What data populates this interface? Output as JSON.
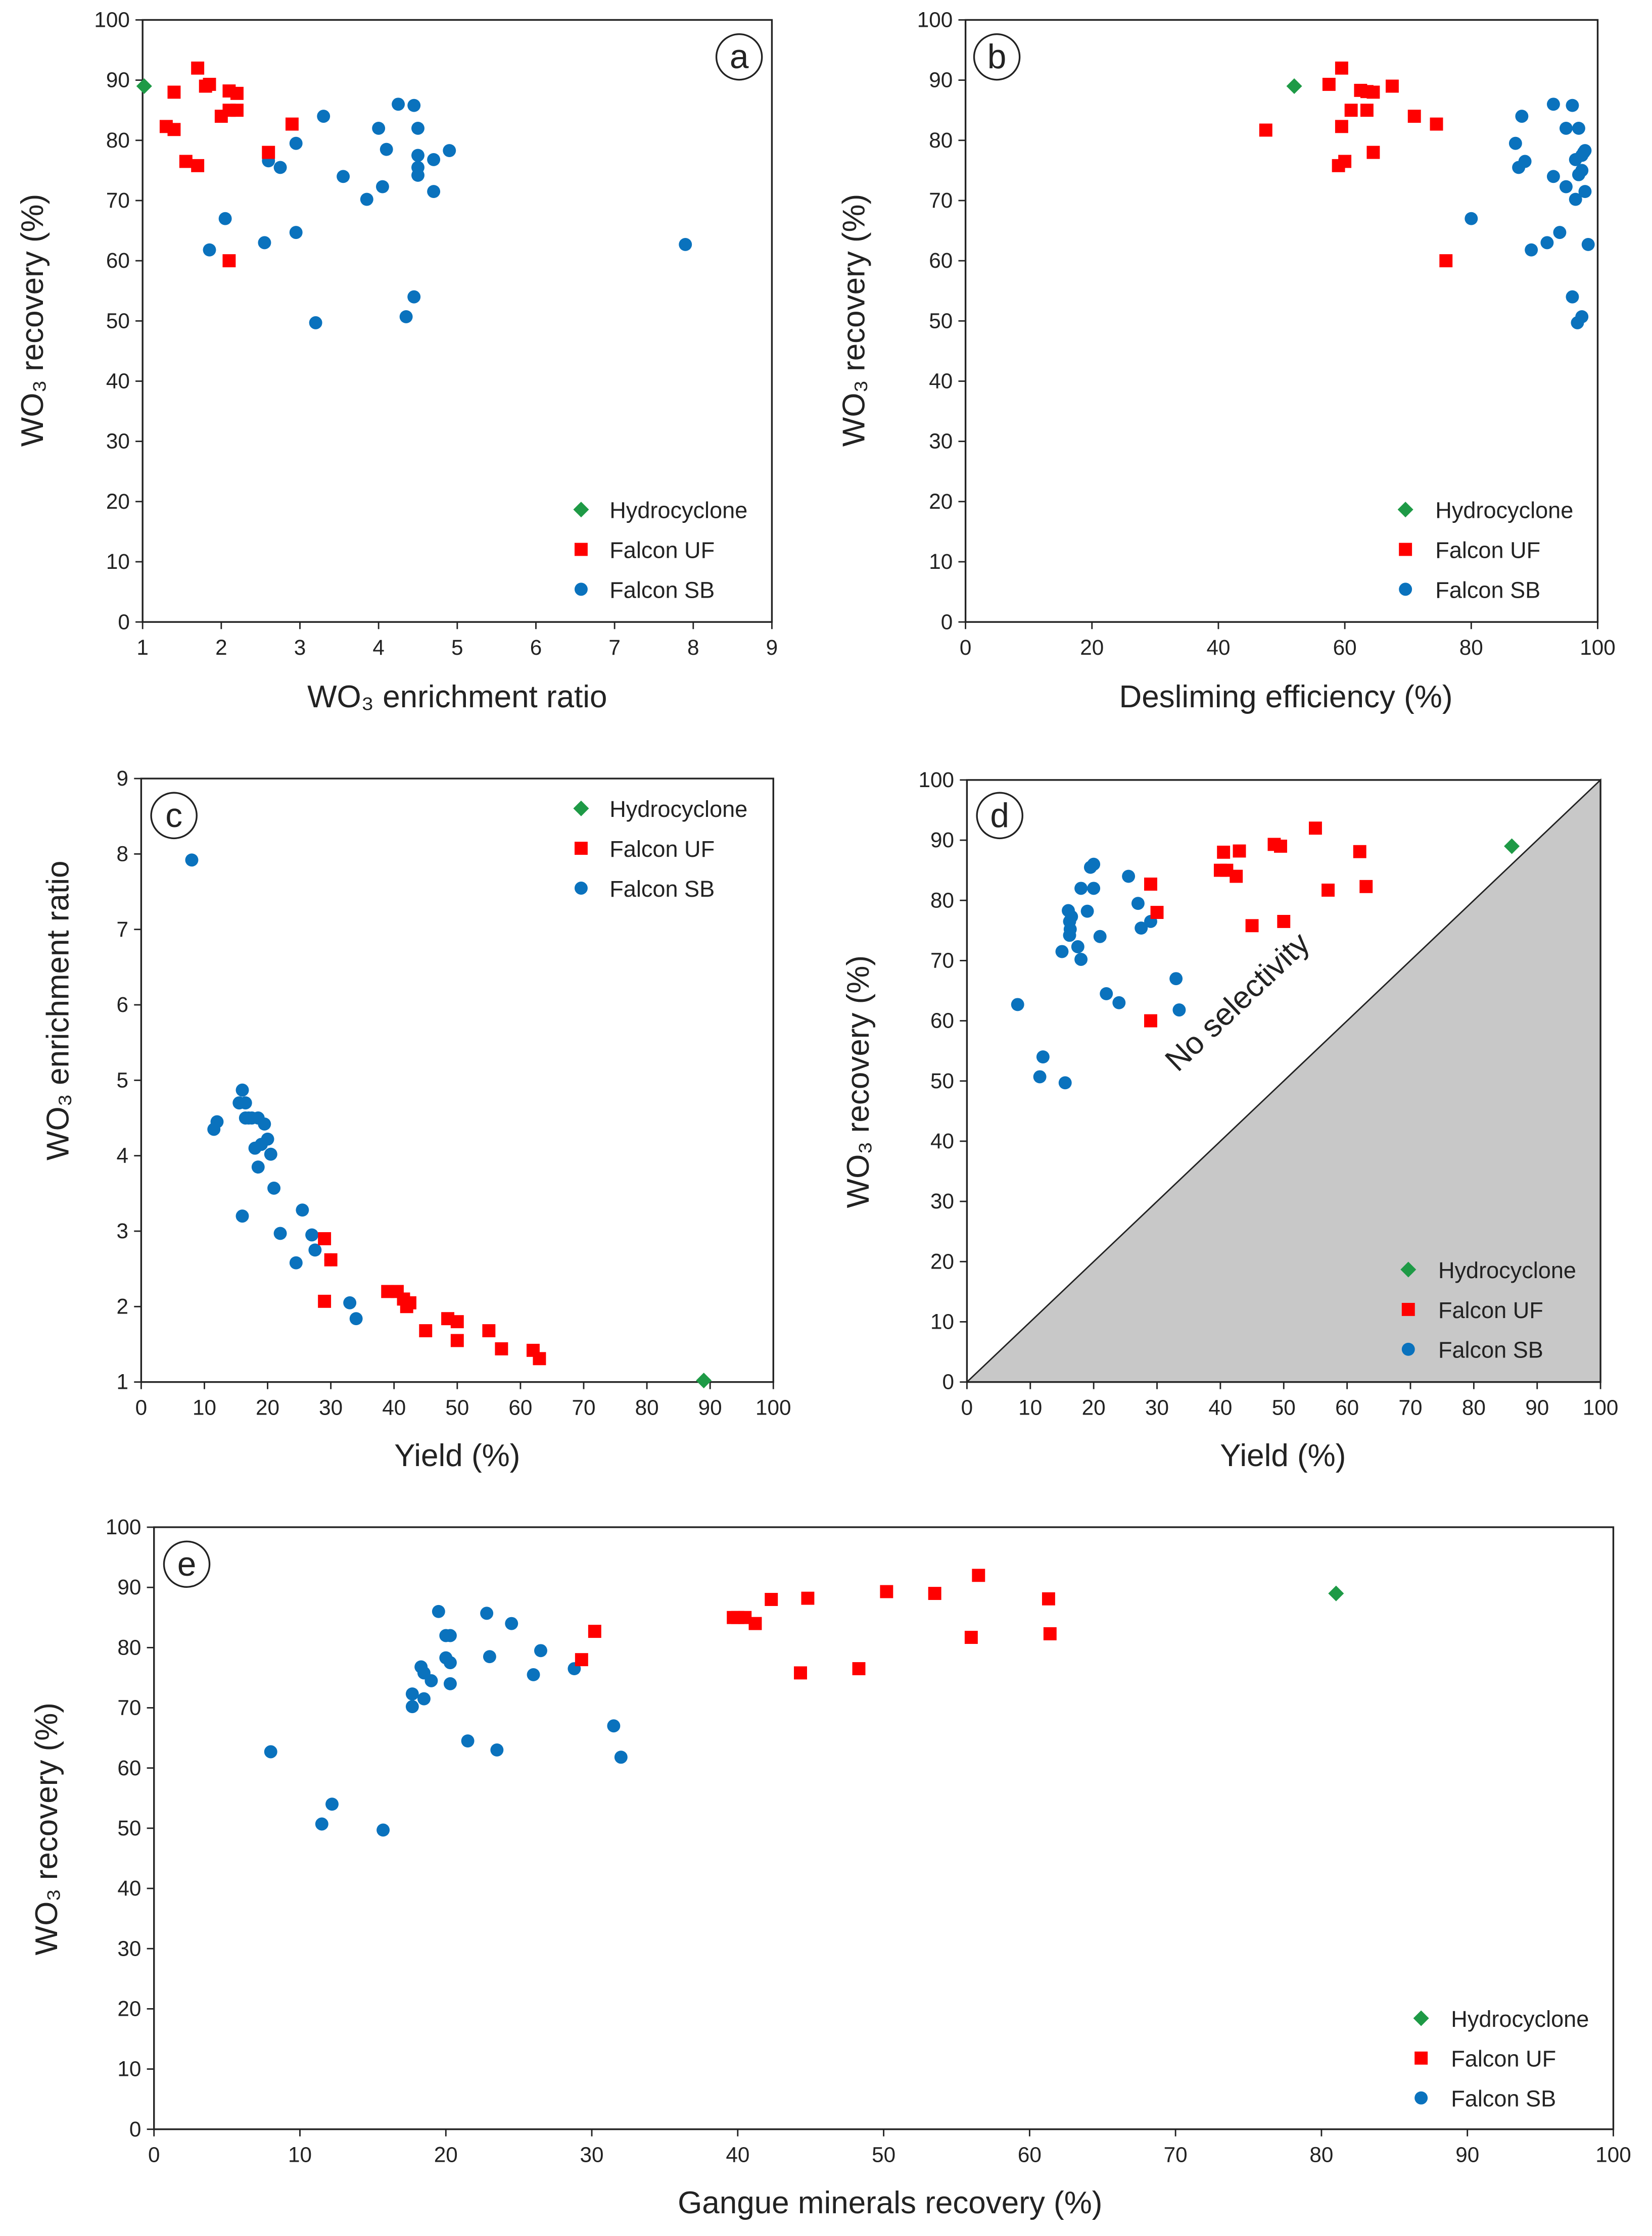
{
  "legend": [
    "Hydrocyclone",
    "Falcon UF",
    "Falcon SB"
  ],
  "colors": {
    "Hydrocyclone": "#1e9a46",
    "Falcon UF": "#ff0000",
    "Falcon SB": "#0a72bd",
    "no_selectivity_fill": "#c8c8c8"
  },
  "markers": {
    "Hydrocyclone": "diamond",
    "Falcon UF": "square",
    "Falcon SB": "circle"
  },
  "chart_data": [
    {
      "type": "scatter",
      "panel": "a",
      "xlabel": "WO₃ enrichment ratio",
      "ylabel": "WO₃ recovery (%)",
      "xlim": [
        1,
        9
      ],
      "ylim": [
        0,
        100
      ],
      "xticks": [
        "1",
        "2",
        "3",
        "4",
        "5",
        "6",
        "7",
        "8",
        "9"
      ],
      "yticks": [
        "0",
        "10",
        "20",
        "30",
        "40",
        "50",
        "60",
        "70",
        "80",
        "90",
        "100"
      ],
      "legend_position": "bottom-right",
      "series": [
        {
          "name": "Hydrocyclone",
          "points": [
            [
              1.02,
              89
            ]
          ]
        },
        {
          "name": "Falcon UF",
          "points": [
            [
              1.7,
              92
            ],
            [
              1.4,
              88
            ],
            [
              1.8,
              89
            ],
            [
              1.85,
              89.3
            ],
            [
              2.1,
              88.2
            ],
            [
              2.2,
              87.8
            ],
            [
              2.1,
              85
            ],
            [
              2.2,
              85
            ],
            [
              2.0,
              84
            ],
            [
              1.3,
              82.3
            ],
            [
              1.4,
              81.8
            ],
            [
              2.9,
              82.7
            ],
            [
              1.55,
              76.5
            ],
            [
              1.7,
              75.8
            ],
            [
              2.6,
              78
            ],
            [
              2.1,
              60
            ]
          ]
        },
        {
          "name": "Falcon SB",
          "points": [
            [
              4.25,
              86
            ],
            [
              4.45,
              85.8
            ],
            [
              3.3,
              84
            ],
            [
              4.5,
              82
            ],
            [
              4.0,
              82
            ],
            [
              4.1,
              78.5
            ],
            [
              4.9,
              78.3
            ],
            [
              4.5,
              77.5
            ],
            [
              4.7,
              76.8
            ],
            [
              4.5,
              75.5
            ],
            [
              4.5,
              74.2
            ],
            [
              2.6,
              76.6
            ],
            [
              2.75,
              75.5
            ],
            [
              2.95,
              79.5
            ],
            [
              3.55,
              74
            ],
            [
              4.05,
              72.3
            ],
            [
              4.7,
              71.5
            ],
            [
              3.85,
              70.2
            ],
            [
              2.05,
              67
            ],
            [
              2.95,
              64.7
            ],
            [
              2.55,
              63
            ],
            [
              1.85,
              61.8
            ],
            [
              7.9,
              62.7
            ],
            [
              4.45,
              54
            ],
            [
              4.35,
              50.7
            ],
            [
              3.2,
              49.7
            ]
          ]
        }
      ]
    },
    {
      "type": "scatter",
      "panel": "b",
      "xlabel": "Desliming efficiency (%)",
      "ylabel": "WO₃ recovery (%)",
      "xlim": [
        0,
        100
      ],
      "ylim": [
        0,
        100
      ],
      "xticks": [
        "0",
        "20",
        "40",
        "60",
        "80",
        "100"
      ],
      "yticks": [
        "0",
        "10",
        "20",
        "30",
        "40",
        "50",
        "60",
        "70",
        "80",
        "90",
        "100"
      ],
      "legend_position": "bottom-right",
      "series": [
        {
          "name": "Hydrocyclone",
          "points": [
            [
              52,
              89
            ]
          ]
        },
        {
          "name": "Falcon UF",
          "points": [
            [
              59.5,
              92
            ],
            [
              57.5,
              89.3
            ],
            [
              67.5,
              89
            ],
            [
              62.5,
              88.3
            ],
            [
              64.5,
              88
            ],
            [
              63.5,
              88.1
            ],
            [
              61,
              85
            ],
            [
              63.5,
              85
            ],
            [
              71,
              84
            ],
            [
              47.5,
              81.7
            ],
            [
              59.5,
              82.3
            ],
            [
              74.5,
              82.7
            ],
            [
              60,
              76.5
            ],
            [
              59,
              75.8
            ],
            [
              64.5,
              78
            ],
            [
              76,
              60
            ]
          ]
        },
        {
          "name": "Falcon SB",
          "points": [
            [
              93,
              86
            ],
            [
              96,
              85.8
            ],
            [
              88,
              84
            ],
            [
              95,
              82
            ],
            [
              97,
              82
            ],
            [
              98,
              78.3
            ],
            [
              97.8,
              78
            ],
            [
              97.5,
              77.5
            ],
            [
              96.5,
              76.8
            ],
            [
              88.5,
              76.5
            ],
            [
              87.5,
              75.5
            ],
            [
              97.5,
              75
            ],
            [
              97,
              74.3
            ],
            [
              93,
              74
            ],
            [
              87,
              79.5
            ],
            [
              95,
              72.3
            ],
            [
              98,
              71.5
            ],
            [
              96.5,
              70.2
            ],
            [
              80,
              67
            ],
            [
              94,
              64.7
            ],
            [
              92,
              63
            ],
            [
              98.5,
              62.7
            ],
            [
              89.5,
              61.8
            ],
            [
              96,
              54
            ],
            [
              97.5,
              50.7
            ],
            [
              96.8,
              49.7
            ]
          ]
        }
      ]
    },
    {
      "type": "scatter",
      "panel": "c",
      "xlabel": "Yield (%)",
      "ylabel": "WO₃ enrichment ratio",
      "xlim": [
        0,
        100
      ],
      "ylim": [
        1,
        9
      ],
      "xticks": [
        "0",
        "10",
        "20",
        "30",
        "40",
        "50",
        "60",
        "70",
        "80",
        "90",
        "100"
      ],
      "yticks": [
        "1",
        "2",
        "3",
        "4",
        "5",
        "6",
        "7",
        "8",
        "9"
      ],
      "legend_position": "top-right",
      "series": [
        {
          "name": "Hydrocyclone",
          "points": [
            [
              89,
              1.02
            ]
          ]
        },
        {
          "name": "Falcon UF",
          "points": [
            [
              29,
              2.9
            ],
            [
              30,
              2.62
            ],
            [
              29,
              2.07
            ],
            [
              39,
              2.2
            ],
            [
              40.5,
              2.2
            ],
            [
              41.5,
              2.1
            ],
            [
              42.5,
              2.05
            ],
            [
              42,
              2.0
            ],
            [
              45,
              1.68
            ],
            [
              48.5,
              1.84
            ],
            [
              50,
              1.8
            ],
            [
              50,
              1.55
            ],
            [
              55,
              1.68
            ],
            [
              57,
              1.44
            ],
            [
              62,
              1.42
            ],
            [
              63,
              1.31
            ]
          ]
        },
        {
          "name": "Falcon SB",
          "points": [
            [
              8,
              7.92
            ],
            [
              16,
              4.87
            ],
            [
              15.5,
              4.7
            ],
            [
              16.5,
              4.7
            ],
            [
              17,
              4.5
            ],
            [
              16.5,
              4.5
            ],
            [
              17.5,
              4.5
            ],
            [
              18.5,
              4.5
            ],
            [
              19.5,
              4.42
            ],
            [
              12,
              4.45
            ],
            [
              11.5,
              4.35
            ],
            [
              20,
              4.22
            ],
            [
              19,
              4.15
            ],
            [
              18,
              4.1
            ],
            [
              20.5,
              4.02
            ],
            [
              18.5,
              3.85
            ],
            [
              21,
              3.57
            ],
            [
              16,
              3.2
            ],
            [
              25.5,
              3.28
            ],
            [
              22,
              2.97
            ],
            [
              27,
              2.95
            ],
            [
              27.5,
              2.75
            ],
            [
              30,
              2.62
            ],
            [
              24.5,
              2.58
            ],
            [
              33,
              2.05
            ],
            [
              34,
              1.84
            ]
          ]
        }
      ]
    },
    {
      "type": "scatter",
      "panel": "d",
      "xlabel": "Yield (%)",
      "ylabel": "WO₃ recovery (%)",
      "xlim": [
        0,
        100
      ],
      "ylim": [
        0,
        100
      ],
      "xticks": [
        "0",
        "10",
        "20",
        "30",
        "40",
        "50",
        "60",
        "70",
        "80",
        "90",
        "100"
      ],
      "yticks": [
        "0",
        "10",
        "20",
        "30",
        "40",
        "50",
        "60",
        "70",
        "80",
        "90",
        "100"
      ],
      "legend_position": "bottom-right",
      "annotation": "No selectivity",
      "series": [
        {
          "name": "Hydrocyclone",
          "points": [
            [
              86,
              89
            ]
          ]
        },
        {
          "name": "Falcon UF",
          "points": [
            [
              40,
              85
            ],
            [
              41,
              85
            ],
            [
              40.5,
              88
            ],
            [
              43,
              88.2
            ],
            [
              42.5,
              84
            ],
            [
              55,
              92
            ],
            [
              48.5,
              89.3
            ],
            [
              49.5,
              89
            ],
            [
              62,
              88.1
            ],
            [
              63,
              82.3
            ],
            [
              57,
              81.7
            ],
            [
              29,
              82.7
            ],
            [
              30,
              78
            ],
            [
              45,
              75.8
            ],
            [
              50,
              76.5
            ],
            [
              29,
              60
            ]
          ]
        },
        {
          "name": "Falcon SB",
          "points": [
            [
              20,
              86
            ],
            [
              19.5,
              85.5
            ],
            [
              25.5,
              84
            ],
            [
              18,
              82
            ],
            [
              20,
              82
            ],
            [
              19,
              78.2
            ],
            [
              16,
              78.3
            ],
            [
              16.5,
              77.3
            ],
            [
              16.2,
              76.5
            ],
            [
              16.3,
              75.2
            ],
            [
              16.2,
              74.2
            ],
            [
              27,
              79.5
            ],
            [
              29,
              76.5
            ],
            [
              27.5,
              75.4
            ],
            [
              21,
              74
            ],
            [
              17.5,
              72.3
            ],
            [
              15,
              71.5
            ],
            [
              18,
              70.2
            ],
            [
              33,
              67
            ],
            [
              22,
              64.5
            ],
            [
              24,
              63
            ],
            [
              33.5,
              61.8
            ],
            [
              8,
              62.7
            ],
            [
              12,
              54
            ],
            [
              11.5,
              50.7
            ],
            [
              15.5,
              49.7
            ]
          ]
        }
      ]
    },
    {
      "type": "scatter",
      "panel": "e",
      "xlabel": "Gangue minerals recovery (%)",
      "ylabel": "WO₃ recovery (%)",
      "xlim": [
        0,
        100
      ],
      "ylim": [
        0,
        100
      ],
      "xticks": [
        "0",
        "10",
        "20",
        "30",
        "40",
        "50",
        "60",
        "70",
        "80",
        "90",
        "100"
      ],
      "yticks": [
        "0",
        "10",
        "20",
        "30",
        "40",
        "50",
        "60",
        "70",
        "80",
        "90",
        "100"
      ],
      "legend_position": "bottom-right",
      "series": [
        {
          "name": "Hydrocyclone",
          "points": [
            [
              81,
              89
            ]
          ]
        },
        {
          "name": "Falcon UF",
          "points": [
            [
              29.3,
              78
            ],
            [
              30.2,
              82.7
            ],
            [
              40,
              85
            ],
            [
              40.5,
              85
            ],
            [
              41.2,
              84
            ],
            [
              42.3,
              88
            ],
            [
              44.8,
              88.2
            ],
            [
              44.3,
              75.8
            ],
            [
              48.3,
              76.5
            ],
            [
              50.2,
              89.3
            ],
            [
              53.5,
              89
            ],
            [
              56.5,
              92
            ],
            [
              56,
              81.7
            ],
            [
              61.3,
              88.1
            ],
            [
              61.4,
              82.3
            ],
            [
              39.7,
              85
            ]
          ]
        },
        {
          "name": "Falcon SB",
          "points": [
            [
              19.5,
              86
            ],
            [
              22.8,
              85.7
            ],
            [
              24.5,
              84
            ],
            [
              20,
              82
            ],
            [
              20.3,
              82
            ],
            [
              23,
              78.5
            ],
            [
              26.5,
              79.5
            ],
            [
              20,
              78.3
            ],
            [
              20.3,
              77.5
            ],
            [
              18.3,
              76.8
            ],
            [
              18.5,
              75.8
            ],
            [
              19,
              74.5
            ],
            [
              20.3,
              74
            ],
            [
              26,
              75.5
            ],
            [
              28.8,
              76.5
            ],
            [
              17.7,
              72.3
            ],
            [
              18.5,
              71.5
            ],
            [
              17.7,
              70.2
            ],
            [
              31.5,
              67
            ],
            [
              21.5,
              64.5
            ],
            [
              23.5,
              63
            ],
            [
              32,
              61.8
            ],
            [
              8,
              62.7
            ],
            [
              12.2,
              54
            ],
            [
              11.5,
              50.7
            ],
            [
              15.7,
              49.7
            ]
          ]
        }
      ]
    }
  ]
}
